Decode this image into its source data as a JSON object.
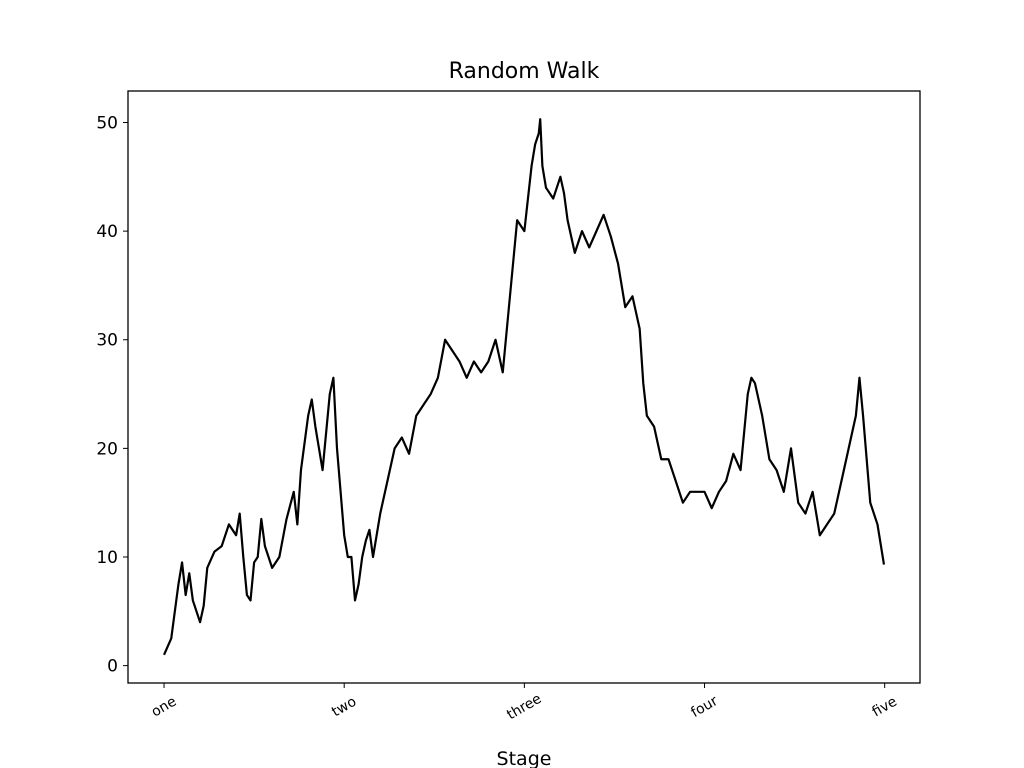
{
  "chart_data": {
    "type": "line",
    "title": "Random Walk",
    "xlabel": "Stage",
    "x": [
      0,
      10,
      20,
      25,
      30,
      35,
      40,
      50,
      55,
      60,
      70,
      80,
      90,
      100,
      105,
      110,
      115,
      120,
      125,
      130,
      135,
      140,
      150,
      160,
      170,
      180,
      185,
      190,
      200,
      205,
      210,
      220,
      230,
      235,
      240,
      250,
      255,
      260,
      265,
      270,
      275,
      280,
      285,
      290,
      300,
      310,
      320,
      330,
      340,
      350,
      360,
      370,
      380,
      390,
      400,
      410,
      420,
      430,
      440,
      450,
      460,
      470,
      480,
      490,
      500,
      505,
      510,
      515,
      520,
      522,
      525,
      530,
      540,
      550,
      555,
      560,
      570,
      580,
      590,
      600,
      610,
      620,
      630,
      640,
      650,
      660,
      665,
      670,
      680,
      690,
      700,
      710,
      720,
      730,
      740,
      750,
      760,
      770,
      780,
      790,
      800,
      810,
      815,
      820,
      830,
      840,
      850,
      860,
      870,
      880,
      890,
      900,
      910,
      920,
      930,
      940,
      950,
      960,
      965,
      970,
      980,
      990,
      999
    ],
    "series": [
      {
        "name": "Random Walk",
        "color": "#000000",
        "values": [
          1,
          2.5,
          7.5,
          9.5,
          6.5,
          8.5,
          6,
          4,
          5.5,
          9,
          10.5,
          11,
          13,
          12,
          14,
          10,
          6.5,
          6,
          9.5,
          10,
          13.5,
          11,
          9,
          10,
          13.5,
          16,
          13,
          18,
          23,
          24.5,
          22,
          18,
          25,
          26.5,
          20,
          12,
          10,
          10,
          6,
          7.5,
          10,
          11.5,
          12.5,
          10,
          14,
          17,
          20,
          21,
          19.5,
          23,
          24,
          25,
          26.5,
          30,
          29,
          28,
          26.5,
          28,
          27,
          28,
          30,
          27,
          34,
          41,
          40,
          43,
          46,
          48,
          49,
          50.3,
          46,
          44,
          43,
          45,
          43.5,
          41,
          38,
          40,
          38.5,
          40,
          41.5,
          39.5,
          37,
          33,
          34,
          31,
          26,
          23,
          22,
          19,
          19,
          17,
          15,
          16,
          16,
          16,
          14.5,
          16,
          17,
          19.5,
          18,
          25,
          26.5,
          26,
          23,
          19,
          18,
          16,
          20,
          15,
          14,
          16,
          12,
          13,
          14,
          17,
          20,
          23,
          26.5,
          23,
          15,
          13,
          9.3
        ]
      }
    ],
    "xlim": [
      -50,
      1049
    ],
    "ylim": [
      -1.6,
      52.9
    ],
    "xticks": [
      {
        "value": 0,
        "label": "one"
      },
      {
        "value": 250,
        "label": "two"
      },
      {
        "value": 500,
        "label": "three"
      },
      {
        "value": 750,
        "label": "four"
      },
      {
        "value": 1000,
        "label": "five"
      }
    ],
    "yticks": [
      0,
      10,
      20,
      30,
      40,
      50
    ]
  }
}
